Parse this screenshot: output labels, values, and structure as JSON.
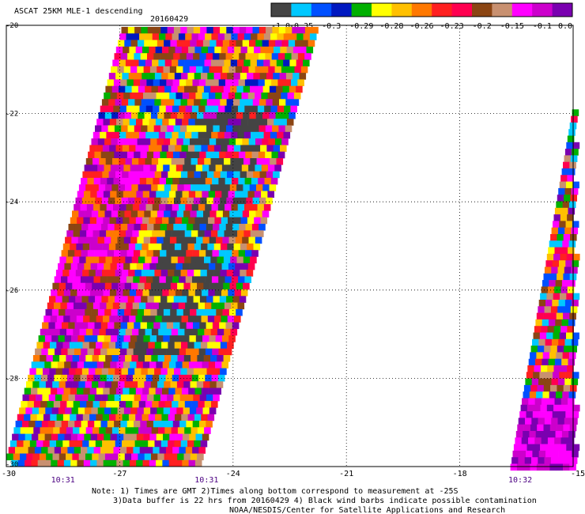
{
  "chart_data": {
    "type": "heatmap",
    "title": "ASCAT 25KM MLE-1 descending",
    "date": "20160429",
    "colorbar": {
      "colors": [
        "#444444",
        "#00c8ff",
        "#0050ff",
        "#0018c0",
        "#00b000",
        "#ffff00",
        "#ffc000",
        "#ff7800",
        "#ff2020",
        "#ff0050",
        "#8b4513",
        "#c89070",
        "#ff00ff",
        "#cc00cc",
        "#7a00b0"
      ],
      "tick_labels": [
        "-1.0",
        "-0.35",
        "-0.3",
        "-0.29",
        "-0.28",
        "-0.26",
        "-0.23",
        "-0.2",
        "-0.15",
        "-0.1",
        "0.0"
      ]
    },
    "x_ticks": [
      -30,
      -27,
      -24,
      -21,
      -18,
      -15
    ],
    "y_ticks": [
      -20,
      -22,
      -24,
      -26,
      -28,
      -30
    ],
    "xlim": [
      -30,
      -15
    ],
    "ylim": [
      -30,
      -20
    ],
    "grid": true,
    "time_labels": [
      {
        "lon": -28.5,
        "text": "10:31"
      },
      {
        "lon": -24.7,
        "text": "10:31"
      },
      {
        "lon": -16.4,
        "text": "10:32"
      }
    ],
    "notes": [
      "Note: 1) Times are GMT 2)Times along bottom correspond to measurement at -25S",
      "3)Data buffer is 22 hrs from 20160429 4) Black wind barbs indicate possible contamination",
      "NOAA/NESDIS/Center for Satellite Applications and Research"
    ]
  }
}
